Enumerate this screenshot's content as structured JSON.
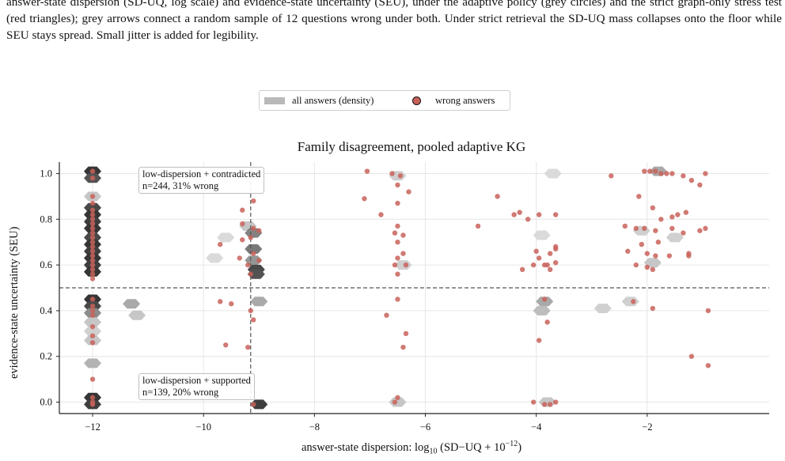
{
  "caption": {
    "text": "answer-state dispersion (SD-UQ, log scale) and evidence-state uncertainty (SEU), under the adaptive policy (grey circles) and the strict graph-only stress test (red triangles); grey arrows connect a random sample of 12 questions wrong under both. Under strict retrieval the SD-UQ mass collapses onto the floor while SEU stays spread. Small jitter is added for legibility."
  },
  "legend": {
    "density_label": "all answers (density)",
    "wrong_label": "wrong answers",
    "placement": "upper-center"
  },
  "colors": {
    "wrong_point": "#c9625a",
    "density_dark": "#2b2b2b",
    "density_light": "#ededed",
    "threshold_line": "#555555"
  },
  "annotations": {
    "top": {
      "line1": "low-dispersion + contradicted",
      "line2": "n=244, 31% wrong"
    },
    "bottom": {
      "line1": "low-dispersion + supported",
      "line2": "n=139, 20% wrong"
    }
  },
  "chart_data": {
    "type": "scatter",
    "title": "Family disagreement, pooled adaptive KG",
    "xlabel": "answer-state dispersion: log10 (SD−UQ + 10−12)",
    "ylabel": "evidence-state uncertainty (SEU)",
    "xlim": [
      -12.6,
      0.2
    ],
    "ylim": [
      -0.05,
      1.05
    ],
    "xticks": [
      -12,
      -10,
      -8,
      -6,
      -4,
      -2
    ],
    "xtick_labels": [
      "−12",
      "−10",
      "−8",
      "−6",
      "−4",
      "−2"
    ],
    "yticks": [
      0.0,
      0.2,
      0.4,
      0.6,
      0.8,
      1.0
    ],
    "ytick_labels": [
      "0.0",
      "0.2",
      "0.4",
      "0.6",
      "0.8",
      "1.0"
    ],
    "grid": true,
    "thresholds": {
      "x": -9.15,
      "y": 0.5
    },
    "density_hexes": [
      {
        "x": -12,
        "y": 1.01,
        "level": 0.95
      },
      {
        "x": -12,
        "y": 0.98,
        "level": 0.8
      },
      {
        "x": -12,
        "y": 0.9,
        "level": 0.2
      },
      {
        "x": -12,
        "y": 0.85,
        "level": 0.85
      },
      {
        "x": -12,
        "y": 0.82,
        "level": 0.95
      },
      {
        "x": -12,
        "y": 0.79,
        "level": 0.9
      },
      {
        "x": -12,
        "y": 0.76,
        "level": 0.95
      },
      {
        "x": -12,
        "y": 0.72,
        "level": 0.85
      },
      {
        "x": -12,
        "y": 0.69,
        "level": 0.95
      },
      {
        "x": -12,
        "y": 0.66,
        "level": 0.9
      },
      {
        "x": -12,
        "y": 0.63,
        "level": 0.95
      },
      {
        "x": -12,
        "y": 0.6,
        "level": 0.9
      },
      {
        "x": -12,
        "y": 0.57,
        "level": 0.95
      },
      {
        "x": -12,
        "y": 0.45,
        "level": 0.95
      },
      {
        "x": -12,
        "y": 0.42,
        "level": 0.85
      },
      {
        "x": -12,
        "y": 0.39,
        "level": 0.5
      },
      {
        "x": -12,
        "y": 0.35,
        "level": 0.2
      },
      {
        "x": -12,
        "y": 0.31,
        "level": 0.15
      },
      {
        "x": -12,
        "y": 0.27,
        "level": 0.2
      },
      {
        "x": -12,
        "y": 0.17,
        "level": 0.3
      },
      {
        "x": -12,
        "y": 0.02,
        "level": 0.95
      },
      {
        "x": -12,
        "y": -0.01,
        "level": 0.9
      },
      {
        "x": -11.3,
        "y": 0.43,
        "level": 0.35
      },
      {
        "x": -11.2,
        "y": 0.38,
        "level": 0.2
      },
      {
        "x": -9.2,
        "y": 0.77,
        "level": 0.2
      },
      {
        "x": -9.1,
        "y": 0.74,
        "level": 0.55
      },
      {
        "x": -9.1,
        "y": 0.67,
        "level": 0.6
      },
      {
        "x": -9.1,
        "y": 0.62,
        "level": 0.45
      },
      {
        "x": -9.05,
        "y": 0.58,
        "level": 0.85
      },
      {
        "x": -9.05,
        "y": 0.56,
        "level": 0.8
      },
      {
        "x": -9.0,
        "y": 0.44,
        "level": 0.35
      },
      {
        "x": -9.0,
        "y": -0.01,
        "level": 0.9
      },
      {
        "x": -9.6,
        "y": 0.72,
        "level": 0.1
      },
      {
        "x": -9.8,
        "y": 0.63,
        "level": 0.1
      },
      {
        "x": -6.5,
        "y": 0.99,
        "level": 0.15
      },
      {
        "x": -6.4,
        "y": 0.6,
        "level": 0.15
      },
      {
        "x": -6.5,
        "y": 0.0,
        "level": 0.2
      },
      {
        "x": -3.7,
        "y": 1.0,
        "level": 0.1
      },
      {
        "x": -3.9,
        "y": 0.73,
        "level": 0.1
      },
      {
        "x": -3.85,
        "y": 0.44,
        "level": 0.35
      },
      {
        "x": -3.9,
        "y": 0.4,
        "level": 0.25
      },
      {
        "x": -3.8,
        "y": 0.0,
        "level": 0.2
      },
      {
        "x": -1.8,
        "y": 1.01,
        "level": 0.35
      },
      {
        "x": -2.1,
        "y": 0.75,
        "level": 0.15
      },
      {
        "x": -1.5,
        "y": 0.72,
        "level": 0.15
      },
      {
        "x": -1.9,
        "y": 0.61,
        "level": 0.2
      },
      {
        "x": -2.3,
        "y": 0.44,
        "level": 0.15
      },
      {
        "x": -2.8,
        "y": 0.41,
        "level": 0.15
      }
    ],
    "wrong_answers": [
      {
        "x": -12,
        "y": 1.01
      },
      {
        "x": -12,
        "y": 0.98
      },
      {
        "x": -12,
        "y": 0.9
      },
      {
        "x": -12,
        "y": 0.87
      },
      {
        "x": -12,
        "y": 0.84
      },
      {
        "x": -12,
        "y": 0.82
      },
      {
        "x": -12,
        "y": 0.8
      },
      {
        "x": -12,
        "y": 0.78
      },
      {
        "x": -12,
        "y": 0.76
      },
      {
        "x": -12,
        "y": 0.74
      },
      {
        "x": -12,
        "y": 0.72
      },
      {
        "x": -12,
        "y": 0.7
      },
      {
        "x": -12,
        "y": 0.68
      },
      {
        "x": -12,
        "y": 0.66
      },
      {
        "x": -12,
        "y": 0.64
      },
      {
        "x": -12,
        "y": 0.62
      },
      {
        "x": -12,
        "y": 0.6
      },
      {
        "x": -12,
        "y": 0.58
      },
      {
        "x": -12,
        "y": 0.56
      },
      {
        "x": -12,
        "y": 0.54
      },
      {
        "x": -12,
        "y": 0.45
      },
      {
        "x": -12,
        "y": 0.42
      },
      {
        "x": -12,
        "y": 0.4
      },
      {
        "x": -12,
        "y": 0.38
      },
      {
        "x": -12,
        "y": 0.33
      },
      {
        "x": -12,
        "y": 0.29
      },
      {
        "x": -12,
        "y": 0.26
      },
      {
        "x": -12,
        "y": 0.1
      },
      {
        "x": -12,
        "y": 0.02
      },
      {
        "x": -12,
        "y": 0.0
      },
      {
        "x": -12,
        "y": -0.01
      },
      {
        "x": -9.3,
        "y": 0.84
      },
      {
        "x": -9.1,
        "y": 0.88
      },
      {
        "x": -9.3,
        "y": 0.78
      },
      {
        "x": -9.1,
        "y": 0.76
      },
      {
        "x": -9.0,
        "y": 0.75
      },
      {
        "x": -9.15,
        "y": 0.72
      },
      {
        "x": -9.3,
        "y": 0.71
      },
      {
        "x": -9.7,
        "y": 0.69
      },
      {
        "x": -9.1,
        "y": 0.65
      },
      {
        "x": -9.35,
        "y": 0.63
      },
      {
        "x": -9.0,
        "y": 0.62
      },
      {
        "x": -9.2,
        "y": 0.6
      },
      {
        "x": -9.15,
        "y": 0.56
      },
      {
        "x": -9.7,
        "y": 0.44
      },
      {
        "x": -9.5,
        "y": 0.43
      },
      {
        "x": -9.15,
        "y": 0.4
      },
      {
        "x": -9.1,
        "y": 0.36
      },
      {
        "x": -9.6,
        "y": 0.25
      },
      {
        "x": -9.2,
        "y": 0.24
      },
      {
        "x": -9.1,
        "y": -0.01
      },
      {
        "x": -7.05,
        "y": 1.01
      },
      {
        "x": -6.6,
        "y": 1.0
      },
      {
        "x": -6.45,
        "y": 0.99
      },
      {
        "x": -6.5,
        "y": 0.95
      },
      {
        "x": -6.3,
        "y": 0.92
      },
      {
        "x": -7.1,
        "y": 0.89
      },
      {
        "x": -6.5,
        "y": 0.87
      },
      {
        "x": -6.8,
        "y": 0.82
      },
      {
        "x": -6.5,
        "y": 0.77
      },
      {
        "x": -6.55,
        "y": 0.74
      },
      {
        "x": -6.4,
        "y": 0.73
      },
      {
        "x": -6.5,
        "y": 0.7
      },
      {
        "x": -6.4,
        "y": 0.65
      },
      {
        "x": -6.5,
        "y": 0.63
      },
      {
        "x": -6.55,
        "y": 0.6
      },
      {
        "x": -6.35,
        "y": 0.6
      },
      {
        "x": -6.5,
        "y": 0.56
      },
      {
        "x": -6.5,
        "y": 0.45
      },
      {
        "x": -6.7,
        "y": 0.38
      },
      {
        "x": -6.35,
        "y": 0.3
      },
      {
        "x": -6.4,
        "y": 0.24
      },
      {
        "x": -6.5,
        "y": 0.02
      },
      {
        "x": -6.55,
        "y": 0.0
      },
      {
        "x": -4.7,
        "y": 0.9
      },
      {
        "x": -5.05,
        "y": 0.77
      },
      {
        "x": -4.4,
        "y": 0.82
      },
      {
        "x": -4.3,
        "y": 0.83
      },
      {
        "x": -4.15,
        "y": 0.8
      },
      {
        "x": -3.65,
        "y": 0.82
      },
      {
        "x": -3.95,
        "y": 0.82
      },
      {
        "x": -4.0,
        "y": 0.66
      },
      {
        "x": -3.75,
        "y": 0.65
      },
      {
        "x": -3.65,
        "y": 0.68
      },
      {
        "x": -3.65,
        "y": 0.67
      },
      {
        "x": -3.95,
        "y": 0.63
      },
      {
        "x": -3.85,
        "y": 0.6
      },
      {
        "x": -4.05,
        "y": 0.6
      },
      {
        "x": -3.8,
        "y": 0.6
      },
      {
        "x": -3.65,
        "y": 0.61
      },
      {
        "x": -4.25,
        "y": 0.58
      },
      {
        "x": -3.75,
        "y": 0.58
      },
      {
        "x": -3.85,
        "y": 0.45
      },
      {
        "x": -3.8,
        "y": 0.35
      },
      {
        "x": -3.95,
        "y": 0.27
      },
      {
        "x": -4.05,
        "y": 0.0
      },
      {
        "x": -3.85,
        "y": -0.01
      },
      {
        "x": -3.75,
        "y": -0.01
      },
      {
        "x": -3.65,
        "y": 0.0
      },
      {
        "x": -2.05,
        "y": 1.01
      },
      {
        "x": -1.95,
        "y": 1.01
      },
      {
        "x": -1.85,
        "y": 1.01
      },
      {
        "x": -1.75,
        "y": 1.0
      },
      {
        "x": -1.65,
        "y": 1.0
      },
      {
        "x": -1.55,
        "y": 1.0
      },
      {
        "x": -2.65,
        "y": 0.99
      },
      {
        "x": -1.35,
        "y": 0.99
      },
      {
        "x": -0.95,
        "y": 1.0
      },
      {
        "x": -1.2,
        "y": 0.97
      },
      {
        "x": -1.05,
        "y": 0.95
      },
      {
        "x": -2.15,
        "y": 0.9
      },
      {
        "x": -1.3,
        "y": 0.83
      },
      {
        "x": -1.9,
        "y": 0.85
      },
      {
        "x": -1.45,
        "y": 0.82
      },
      {
        "x": -1.75,
        "y": 0.8
      },
      {
        "x": -1.55,
        "y": 0.81
      },
      {
        "x": -2.4,
        "y": 0.77
      },
      {
        "x": -2.2,
        "y": 0.76
      },
      {
        "x": -2.05,
        "y": 0.76
      },
      {
        "x": -1.85,
        "y": 0.75
      },
      {
        "x": -1.55,
        "y": 0.76
      },
      {
        "x": -1.35,
        "y": 0.74
      },
      {
        "x": -1.05,
        "y": 0.75
      },
      {
        "x": -0.95,
        "y": 0.76
      },
      {
        "x": -2.1,
        "y": 0.69
      },
      {
        "x": -1.8,
        "y": 0.7
      },
      {
        "x": -2.35,
        "y": 0.66
      },
      {
        "x": -2.0,
        "y": 0.65
      },
      {
        "x": -1.85,
        "y": 0.64
      },
      {
        "x": -1.6,
        "y": 0.64
      },
      {
        "x": -1.25,
        "y": 0.64
      },
      {
        "x": -1.25,
        "y": 0.65
      },
      {
        "x": -2.2,
        "y": 0.6
      },
      {
        "x": -2.0,
        "y": 0.59
      },
      {
        "x": -1.9,
        "y": 0.58
      },
      {
        "x": -1.9,
        "y": 0.41
      },
      {
        "x": -0.9,
        "y": 0.4
      },
      {
        "x": -1.2,
        "y": 0.2
      },
      {
        "x": -0.9,
        "y": 0.16
      },
      {
        "x": -2.25,
        "y": 0.44
      }
    ]
  }
}
